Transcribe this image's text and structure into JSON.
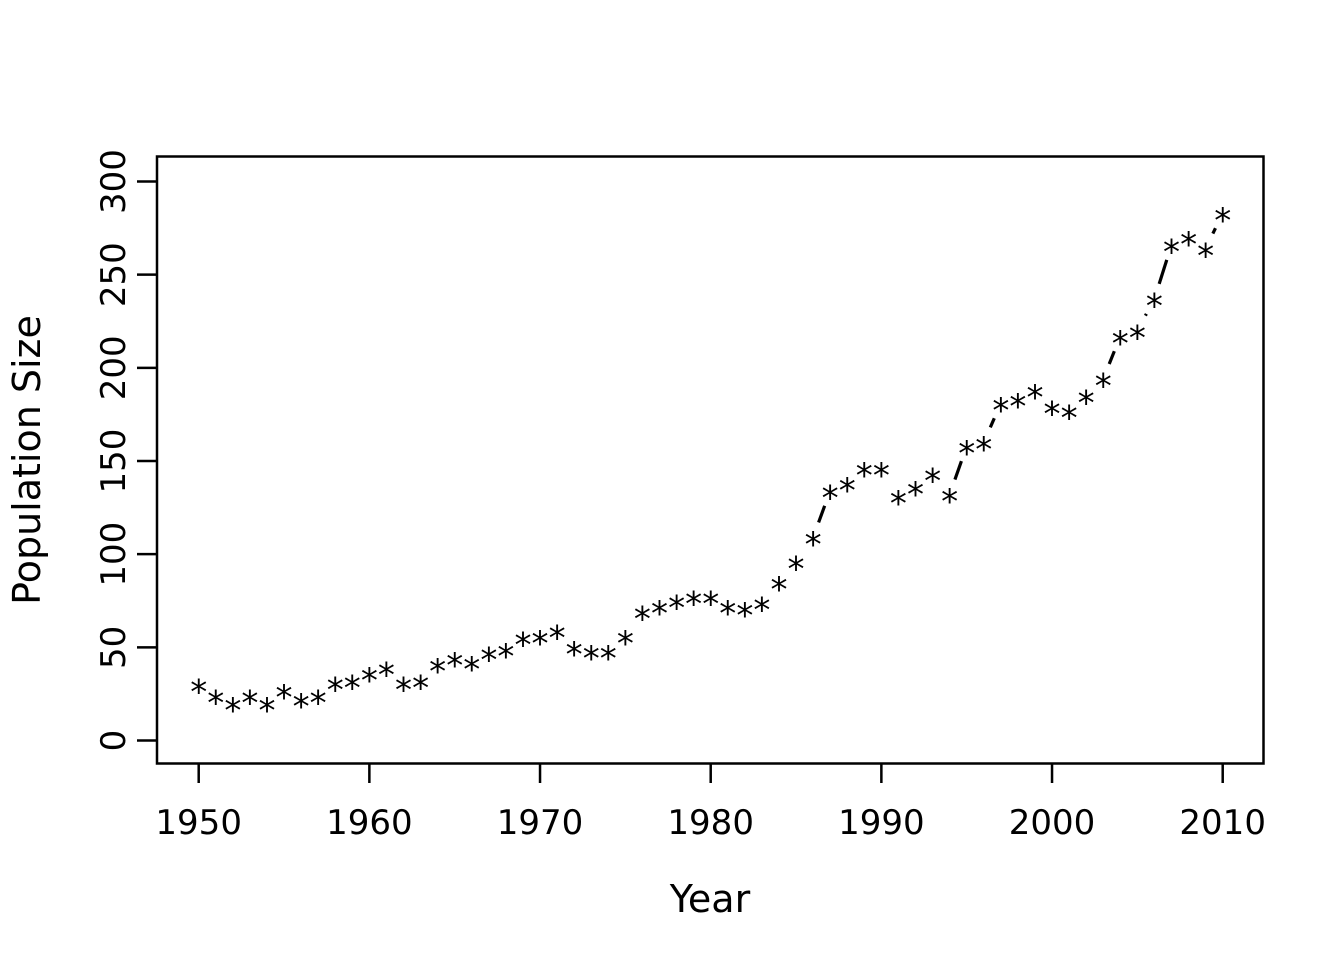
{
  "chart_data": {
    "type": "scatter",
    "title": "",
    "xlabel": "Year",
    "ylabel": "Population Size",
    "marker": "*",
    "line_type": "broken-line-fragments-between-distant-points",
    "marker_color": "#000000",
    "background_color": "#ffffff",
    "x": [
      1950,
      1951,
      1952,
      1953,
      1954,
      1955,
      1956,
      1957,
      1958,
      1959,
      1960,
      1961,
      1962,
      1963,
      1964,
      1965,
      1966,
      1967,
      1968,
      1969,
      1970,
      1971,
      1972,
      1973,
      1974,
      1975,
      1976,
      1977,
      1978,
      1979,
      1980,
      1981,
      1982,
      1983,
      1984,
      1985,
      1986,
      1987,
      1988,
      1989,
      1990,
      1991,
      1992,
      1993,
      1994,
      1995,
      1996,
      1997,
      1998,
      1999,
      2000,
      2001,
      2002,
      2003,
      2004,
      2005,
      2006,
      2007,
      2008,
      2009,
      2010
    ],
    "values": [
      30,
      24,
      20,
      24,
      20,
      27,
      22,
      24,
      31,
      32,
      36,
      39,
      31,
      32,
      41,
      44,
      42,
      47,
      49,
      55,
      56,
      59,
      50,
      48,
      48,
      56,
      69,
      72,
      75,
      77,
      77,
      72,
      71,
      74,
      85,
      96,
      109,
      134,
      138,
      146,
      146,
      131,
      136,
      143,
      132,
      158,
      160,
      181,
      183,
      188,
      179,
      177,
      185,
      194,
      217,
      220,
      237,
      266,
      270,
      264,
      283
    ],
    "xticks": [
      1950,
      1960,
      1970,
      1980,
      1990,
      2000,
      2010
    ],
    "yticks": [
      0,
      50,
      100,
      150,
      200,
      250,
      300
    ],
    "xlim": [
      1947.6,
      2012.4
    ],
    "ylim": [
      0,
      300
    ],
    "grid": "off",
    "legend": "none"
  }
}
